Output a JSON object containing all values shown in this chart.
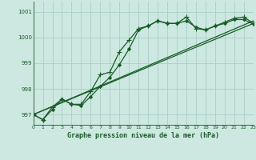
{
  "title": "Graphe pression niveau de la mer (hPa)",
  "background_color": "#cce8e0",
  "grid_color": "#aacfc8",
  "line_color": "#1a5c2a",
  "xlim": [
    0,
    23
  ],
  "ylim": [
    996.6,
    1001.4
  ],
  "yticks": [
    997,
    998,
    999,
    1000,
    1001
  ],
  "xticks": [
    0,
    1,
    2,
    3,
    4,
    5,
    6,
    7,
    8,
    9,
    10,
    11,
    12,
    13,
    14,
    15,
    16,
    17,
    18,
    19,
    20,
    21,
    22,
    23
  ],
  "series": [
    {
      "x": [
        0,
        1,
        2,
        3,
        4,
        5,
        6,
        7,
        8,
        9,
        10,
        11,
        12,
        13,
        14,
        15,
        16,
        17,
        18,
        19,
        20,
        21,
        22,
        23
      ],
      "y": [
        997.0,
        996.8,
        997.2,
        997.6,
        997.4,
        997.35,
        997.7,
        998.1,
        998.45,
        998.95,
        999.55,
        1000.3,
        1000.45,
        1000.65,
        1000.55,
        1000.55,
        1000.65,
        1000.4,
        1000.3,
        1000.45,
        1000.55,
        1000.7,
        1000.7,
        1000.52
      ],
      "marker": "D",
      "markersize": 2.0,
      "linewidth": 0.9
    },
    {
      "x": [
        0,
        1,
        2,
        3,
        4,
        5,
        6,
        7,
        8,
        9,
        10,
        11,
        12,
        13,
        14,
        15,
        16,
        17,
        18,
        19,
        20,
        21,
        22,
        23
      ],
      "y": [
        997.0,
        996.8,
        997.3,
        997.6,
        997.4,
        997.4,
        997.9,
        998.55,
        998.65,
        999.45,
        999.9,
        1000.35,
        1000.45,
        1000.65,
        1000.55,
        1000.55,
        1000.8,
        1000.35,
        1000.3,
        1000.45,
        1000.6,
        1000.75,
        1000.8,
        1000.55
      ],
      "marker": "+",
      "markersize": 4.0,
      "linewidth": 0.9
    },
    {
      "x": [
        0,
        23
      ],
      "y": [
        997.0,
        1000.55
      ],
      "marker": "None",
      "markersize": 0,
      "linewidth": 0.9
    },
    {
      "x": [
        0,
        23
      ],
      "y": [
        997.0,
        1000.65
      ],
      "marker": "None",
      "markersize": 0,
      "linewidth": 0.9
    }
  ]
}
